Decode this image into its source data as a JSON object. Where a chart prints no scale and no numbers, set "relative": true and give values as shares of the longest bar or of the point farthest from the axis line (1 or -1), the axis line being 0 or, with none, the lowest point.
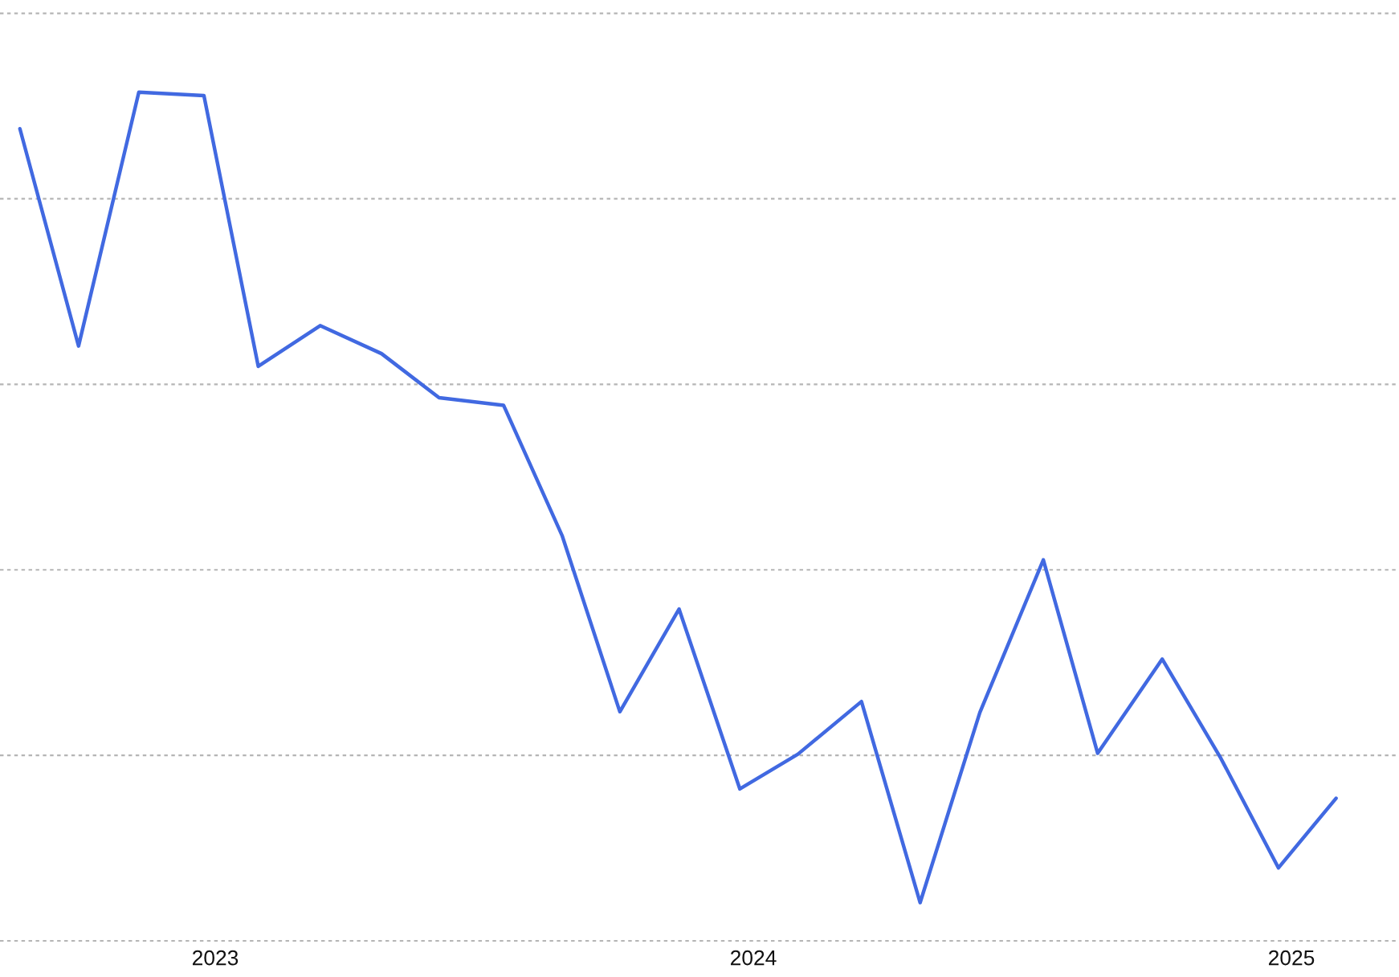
{
  "chart_data": {
    "type": "line",
    "x": [
      2022.637,
      2022.746,
      2022.858,
      2022.979,
      2023.08,
      2023.195,
      2023.309,
      2023.416,
      2023.536,
      2023.645,
      2023.752,
      2023.862,
      2023.975,
      2024.083,
      2024.201,
      2024.31,
      2024.421,
      2024.539,
      2024.64,
      2024.76,
      2024.869,
      2024.976,
      2025.083
    ],
    "series": [
      {
        "color": "#4169e1",
        "values": [
          0.957,
          0.701,
          1,
          0.996,
          0.677,
          0.725,
          0.692,
          0.64,
          0.631,
          0.477,
          0.27,
          0.391,
          0.179,
          0.22,
          0.282,
          0.045,
          0.269,
          0.449,
          0.221,
          0.332,
          0.215,
          0.086,
          0.168
        ]
      }
    ],
    "relative": true,
    "xlim": [
      2022.6,
      2025.2
    ],
    "xticks": [
      2023,
      2024,
      2025
    ],
    "grid": "y",
    "line_style": "solid"
  }
}
